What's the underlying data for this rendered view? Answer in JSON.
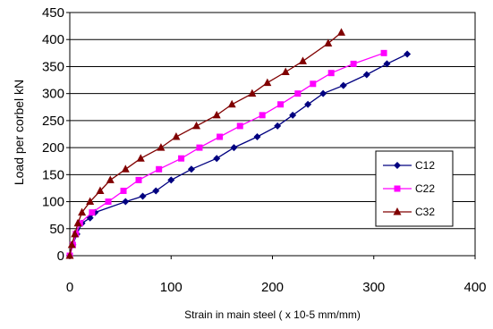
{
  "chart_data": {
    "type": "line",
    "title": "",
    "xlabel": "Strain in main steel ( x 10-5 mm/mm)",
    "ylabel": "Load per corbel kN",
    "xlim": [
      0,
      400
    ],
    "ylim": [
      0,
      450
    ],
    "xticks": [
      0,
      100,
      200,
      300,
      400
    ],
    "yticks": [
      0,
      50,
      100,
      150,
      200,
      250,
      300,
      350,
      400,
      450
    ],
    "grid": "horizontal",
    "legend_position": "right",
    "series": [
      {
        "name": "C12",
        "color": "#000080",
        "marker": "diamond",
        "points": [
          [
            0,
            0
          ],
          [
            3,
            20
          ],
          [
            7,
            40
          ],
          [
            12,
            60
          ],
          [
            20,
            70
          ],
          [
            25,
            80
          ],
          [
            55,
            100
          ],
          [
            72,
            110
          ],
          [
            85,
            120
          ],
          [
            100,
            140
          ],
          [
            120,
            160
          ],
          [
            145,
            180
          ],
          [
            162,
            200
          ],
          [
            185,
            220
          ],
          [
            205,
            240
          ],
          [
            220,
            260
          ],
          [
            235,
            280
          ],
          [
            250,
            300
          ],
          [
            270,
            315
          ],
          [
            293,
            335
          ],
          [
            313,
            355
          ],
          [
            333,
            373
          ]
        ]
      },
      {
        "name": "C22",
        "color": "#ff00ff",
        "marker": "square",
        "points": [
          [
            0,
            0
          ],
          [
            3,
            20
          ],
          [
            6,
            40
          ],
          [
            10,
            60
          ],
          [
            22,
            80
          ],
          [
            38,
            100
          ],
          [
            53,
            120
          ],
          [
            68,
            140
          ],
          [
            88,
            160
          ],
          [
            110,
            180
          ],
          [
            128,
            200
          ],
          [
            148,
            220
          ],
          [
            168,
            240
          ],
          [
            190,
            260
          ],
          [
            208,
            280
          ],
          [
            225,
            300
          ],
          [
            240,
            318
          ],
          [
            258,
            338
          ],
          [
            280,
            355
          ],
          [
            310,
            375
          ]
        ]
      },
      {
        "name": "C32",
        "color": "#800000",
        "marker": "triangle",
        "points": [
          [
            0,
            0
          ],
          [
            2,
            20
          ],
          [
            5,
            40
          ],
          [
            8,
            60
          ],
          [
            12,
            80
          ],
          [
            20,
            100
          ],
          [
            30,
            120
          ],
          [
            40,
            140
          ],
          [
            55,
            160
          ],
          [
            70,
            180
          ],
          [
            90,
            200
          ],
          [
            105,
            220
          ],
          [
            125,
            240
          ],
          [
            145,
            260
          ],
          [
            160,
            280
          ],
          [
            180,
            300
          ],
          [
            195,
            320
          ],
          [
            213,
            340
          ],
          [
            230,
            360
          ],
          [
            255,
            393
          ],
          [
            268,
            413
          ]
        ]
      }
    ]
  }
}
